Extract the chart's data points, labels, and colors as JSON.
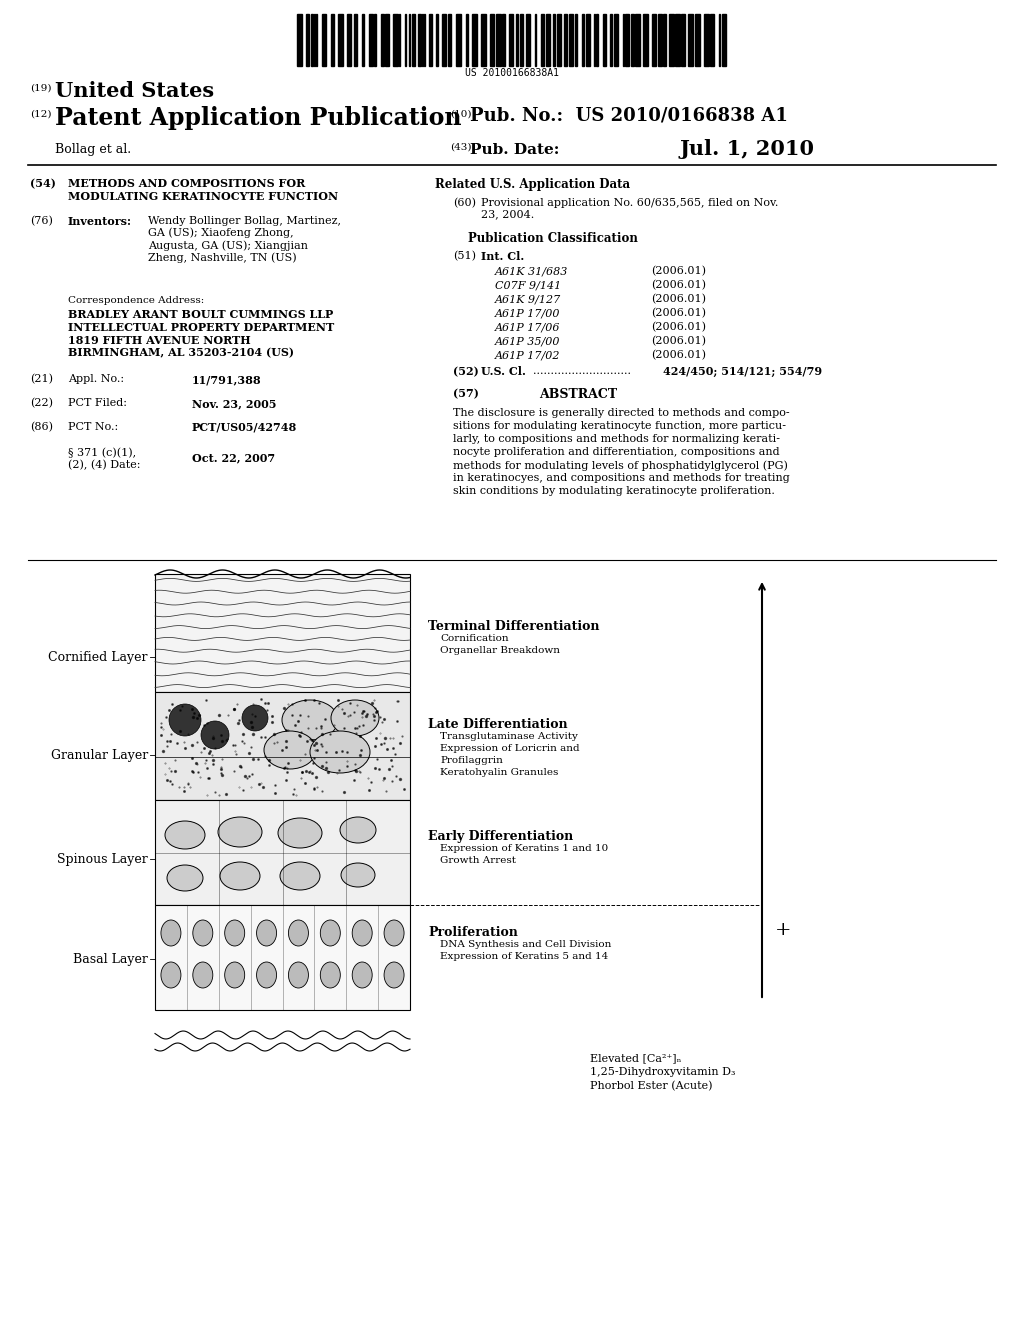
{
  "background_color": "#ffffff",
  "barcode_text": "US 20100166838A1",
  "header": {
    "country_num": "(19)",
    "country": "United States",
    "type_num": "(12)",
    "type": "Patent Application Publication",
    "pub_num_label_num": "(10)",
    "pub_num_label": "Pub. No.:",
    "pub_num": "US 2010/0166838 A1",
    "date_label_num": "(43)",
    "date_label": "Pub. Date:",
    "date": "Jul. 1, 2010",
    "applicant": "Bollag et al."
  },
  "left_col": {
    "title_num": "(54)",
    "title_text": "METHODS AND COMPOSITIONS FOR\nMODULATING KERATINOCYTE FUNCTION",
    "inv_num": "(76)",
    "inv_label": "Inventors:",
    "inv_body": "Wendy Bollinger Bollag, Martinez,\nGA (US); Xiaofeng Zhong,\nAugusta, GA (US); Xiangjian\nZheng, Nashville, TN (US)",
    "corr_label": "Correspondence Address:",
    "corr_body": "BRADLEY ARANT BOULT CUMMINGS LLP\nINTELLECTUAL PROPERTY DEPARTMENT\n1819 FIFTH AVENUE NORTH\nBIRMINGHAM, AL 35203-2104 (US)",
    "appl_num": "(21)",
    "appl_label": "Appl. No.:",
    "appl_val": "11/791,388",
    "pct_filed_num": "(22)",
    "pct_filed_label": "PCT Filed:",
    "pct_filed_val": "Nov. 23, 2005",
    "pct_no_num": "(86)",
    "pct_no_label": "PCT No.:",
    "pct_no_val": "PCT/US05/42748",
    "sect371_label": "§ 371 (c)(1),\n(2), (4) Date:",
    "sect371_val": "Oct. 22, 2007"
  },
  "right_related_title": "Related U.S. Application Data",
  "right_related_num": "(60)",
  "right_related_text": "Provisional application No. 60/635,565, filed on Nov.\n23, 2004.",
  "pub_class_title": "Publication Classification",
  "int_cl_num": "(51)",
  "int_cl_label": "Int. Cl.",
  "classes": [
    [
      "A61K 31/683",
      "(2006.01)"
    ],
    [
      "C07F 9/141",
      "(2006.01)"
    ],
    [
      "A61K 9/127",
      "(2006.01)"
    ],
    [
      "A61P 17/00",
      "(2006.01)"
    ],
    [
      "A61P 17/06",
      "(2006.01)"
    ],
    [
      "A61P 35/00",
      "(2006.01)"
    ],
    [
      "A61P 17/02",
      "(2006.01)"
    ]
  ],
  "us_cl_num": "(52)",
  "us_cl_label": "U.S. Cl.",
  "us_cl_dots": "............................",
  "us_cl_val": "424/450; 514/121; 554/79",
  "abstract_num": "(57)",
  "abstract_title": "ABSTRACT",
  "abstract_lines": [
    "The disclosure is generally directed to methods and compo-",
    "sitions for modulating keratinocyte function, more particu-",
    "larly, to compositions and methods for normalizing kerati-",
    "nocyte proliferation and differentiation, compositions and",
    "methods for modulating levels of phosphatidylglycerol (PG)",
    "in keratinocyes, and compositions and methods for treating",
    "skin conditions by modulating keratinocyte proliferation."
  ],
  "layer_labels": [
    {
      "name": "Cornified Layer",
      "ytop": 614,
      "ybot": 700
    },
    {
      "name": "Granular Layer",
      "ytop": 700,
      "ybot": 810
    },
    {
      "name": "Spinous Layer",
      "ytop": 810,
      "ybot": 908
    },
    {
      "name": "Basal Layer",
      "ytop": 908,
      "ybot": 1010
    }
  ],
  "ann": [
    {
      "title": "Terminal Differentiation",
      "lines": [
        "Cornification",
        "Organellar Breakdown"
      ],
      "ytop": 620
    },
    {
      "title": "Late Differentiation",
      "lines": [
        "Transglutaminase Activity",
        "Expression of Loricrin and",
        "Profilaggrin",
        "Keratohyalin Granules"
      ],
      "ytop": 718
    },
    {
      "title": "Early Differentiation",
      "lines": [
        "Expression of Keratins 1 and 10",
        "Growth Arrest"
      ],
      "ytop": 830
    },
    {
      "title": "Proliferation",
      "lines": [
        "DNA Synthesis and Cell Division",
        "Expression of Keratins 5 and 14"
      ],
      "ytop": 926
    }
  ],
  "arrow_labels": [
    "Elevated [Ca²⁺]ₙ",
    "1,25-Dihydroxyvitamin D₃",
    "Phorbol Ester (Acute)"
  ],
  "plus_sign": "+"
}
